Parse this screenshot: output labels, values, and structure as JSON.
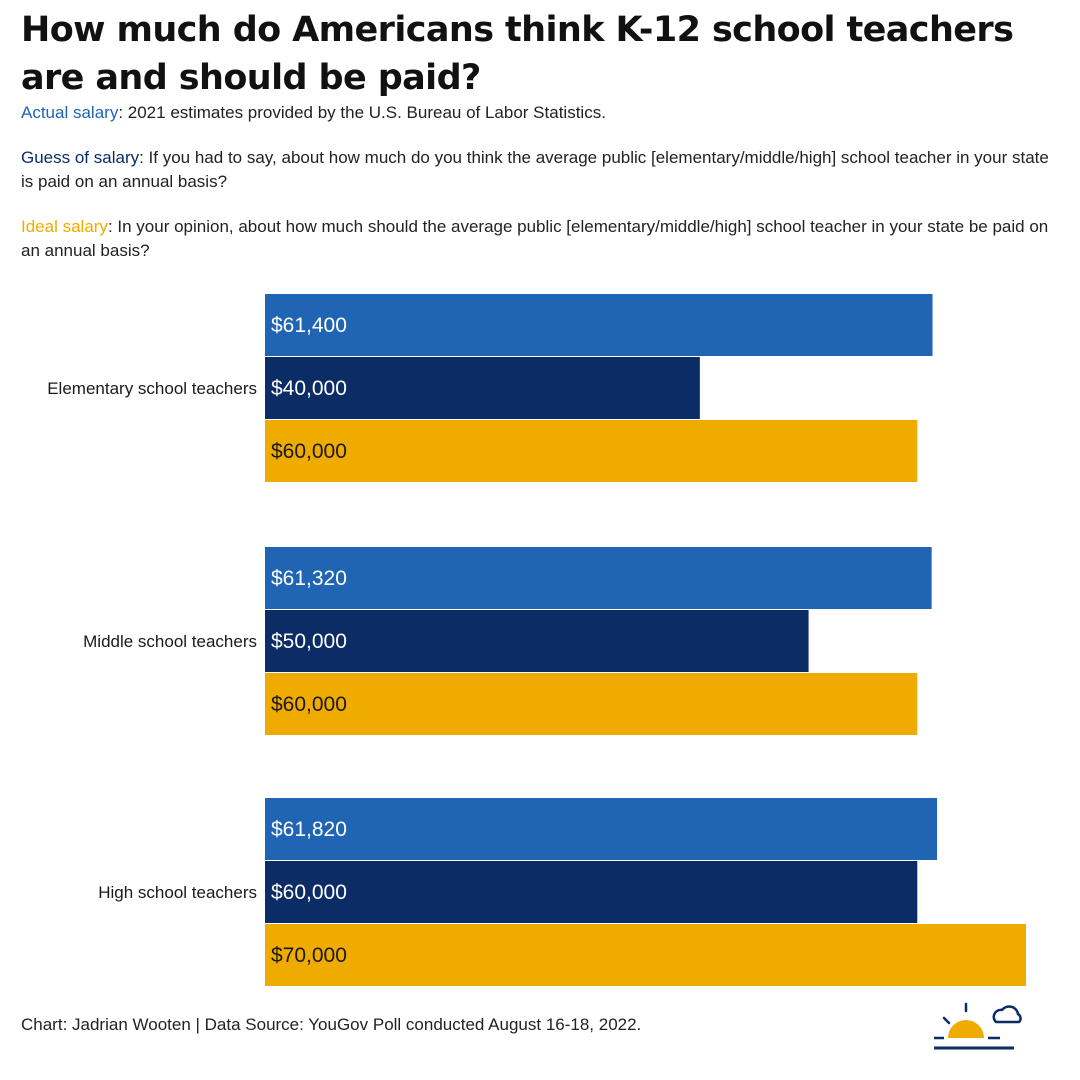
{
  "title": "How much do Americans think K-12 school teachers are and should be paid?",
  "notes": {
    "actual": {
      "label": "Actual salary",
      "text": ": 2021 estimates provided by the U.S. Bureau of Labor Statistics."
    },
    "guess": {
      "label": "Guess of salary",
      "text": ": If you had to say, about how much do you think the average public [elementary/middle/high] school teacher in your state is paid on an annual basis?"
    },
    "ideal": {
      "label": "Ideal salary",
      "text": ": In your opinion, about how much should the average public [elementary/middle/high] school teacher in your state be paid on an annual basis?"
    }
  },
  "footer": "Chart: Jadrian Wooten | Data Source: YouGov Poll conducted August 16-18, 2022.",
  "colors": {
    "actual": "#2064b4",
    "guess": "#0b2c64",
    "ideal": "#f0ab00",
    "logo_navy": "#0b2c64",
    "logo_gold": "#f0ab00"
  },
  "chart_data": {
    "type": "bar",
    "orientation": "horizontal",
    "categories": [
      "Elementary school teachers",
      "Middle school teachers",
      "High school teachers"
    ],
    "series": [
      {
        "name": "Actual salary",
        "values": [
          61400,
          61320,
          61820
        ],
        "labels": [
          "$61,400",
          "$61,320",
          "$61,820"
        ]
      },
      {
        "name": "Guess of salary",
        "values": [
          40000,
          50000,
          60000
        ],
        "labels": [
          "$40,000",
          "$50,000",
          "$60,000"
        ]
      },
      {
        "name": "Ideal salary",
        "values": [
          60000,
          60000,
          70000
        ],
        "labels": [
          "$60,000",
          "$60,000",
          "$70,000"
        ]
      }
    ],
    "xlim": [
      0,
      70000
    ],
    "grid": false,
    "legend": "none"
  }
}
